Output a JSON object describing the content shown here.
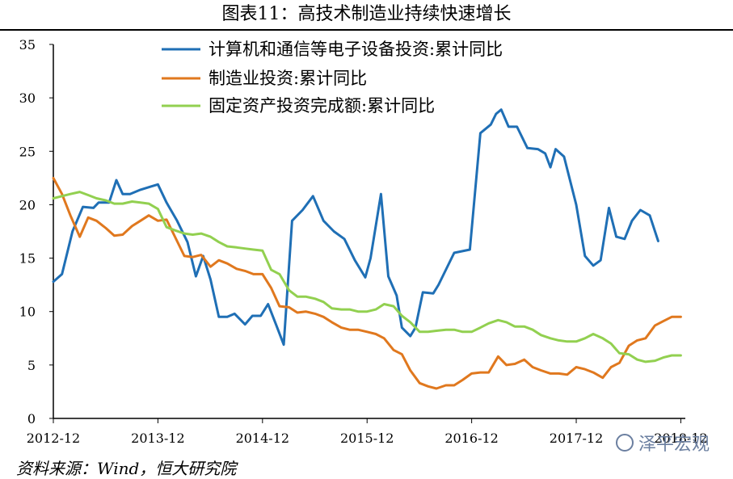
{
  "title": "图表11：高技术制造业持续快速增长",
  "source": "资料来源：Wind，恒大研究院",
  "watermark": "泽平宏观",
  "chart_data": {
    "type": "line",
    "title": "图表11：高技术制造业持续快速增长",
    "ylim": [
      0,
      35
    ],
    "yticks": [
      0,
      5,
      10,
      15,
      20,
      25,
      30,
      35
    ],
    "xlim": [
      2012.917,
      2018.96
    ],
    "xticks": [
      {
        "label": "2012-12",
        "x": 2012.917
      },
      {
        "label": "2013-12",
        "x": 2013.917
      },
      {
        "label": "2014-12",
        "x": 2014.917
      },
      {
        "label": "2015-12",
        "x": 2015.917
      },
      {
        "label": "2016-12",
        "x": 2016.917
      },
      {
        "label": "2017-12",
        "x": 2017.917
      },
      {
        "label": "2018-12",
        "x": 2018.917
      }
    ],
    "legend_position": "top-center",
    "grid": false,
    "series": [
      {
        "name": "计算机和通信等电子设备投资:累计同比",
        "color": "#1f6fb5",
        "points": [
          [
            2012.917,
            12.8
          ],
          [
            2013.0,
            13.5
          ],
          [
            2013.1,
            17.5
          ],
          [
            2013.2,
            19.8
          ],
          [
            2013.3,
            19.7
          ],
          [
            2013.35,
            20.2
          ],
          [
            2013.45,
            20.2
          ],
          [
            2013.52,
            22.3
          ],
          [
            2013.58,
            21.0
          ],
          [
            2013.65,
            21.0
          ],
          [
            2013.75,
            21.4
          ],
          [
            2013.85,
            21.7
          ],
          [
            2013.917,
            21.9
          ],
          [
            2014.0,
            20.2
          ],
          [
            2014.1,
            18.5
          ],
          [
            2014.2,
            16.5
          ],
          [
            2014.28,
            13.3
          ],
          [
            2014.35,
            15.2
          ],
          [
            2014.42,
            13.0
          ],
          [
            2014.5,
            9.5
          ],
          [
            2014.58,
            9.5
          ],
          [
            2014.65,
            9.8
          ],
          [
            2014.75,
            8.8
          ],
          [
            2014.82,
            9.6
          ],
          [
            2014.9,
            9.6
          ],
          [
            2014.97,
            10.7
          ],
          [
            2015.05,
            8.7
          ],
          [
            2015.12,
            6.9
          ],
          [
            2015.2,
            18.5
          ],
          [
            2015.3,
            19.5
          ],
          [
            2015.4,
            20.8
          ],
          [
            2015.5,
            18.5
          ],
          [
            2015.6,
            17.5
          ],
          [
            2015.7,
            16.8
          ],
          [
            2015.8,
            14.8
          ],
          [
            2015.9,
            13.2
          ],
          [
            2015.95,
            15.0
          ],
          [
            2016.05,
            21.0
          ],
          [
            2016.12,
            13.3
          ],
          [
            2016.2,
            11.5
          ],
          [
            2016.25,
            8.5
          ],
          [
            2016.33,
            7.7
          ],
          [
            2016.38,
            8.5
          ],
          [
            2016.45,
            11.8
          ],
          [
            2016.55,
            11.7
          ],
          [
            2016.6,
            12.5
          ],
          [
            2016.75,
            15.5
          ],
          [
            2016.9,
            15.8
          ],
          [
            2017.0,
            26.7
          ],
          [
            2017.1,
            27.5
          ],
          [
            2017.15,
            28.5
          ],
          [
            2017.2,
            28.9
          ],
          [
            2017.27,
            27.3
          ],
          [
            2017.35,
            27.3
          ],
          [
            2017.45,
            25.3
          ],
          [
            2017.55,
            25.2
          ],
          [
            2017.62,
            24.8
          ],
          [
            2017.67,
            23.5
          ],
          [
            2017.72,
            25.2
          ],
          [
            2017.8,
            24.5
          ],
          [
            2017.917,
            20.0
          ],
          [
            2018.0,
            15.2
          ],
          [
            2018.08,
            14.3
          ],
          [
            2018.15,
            14.8
          ],
          [
            2018.23,
            19.7
          ],
          [
            2018.3,
            17.0
          ],
          [
            2018.38,
            16.8
          ],
          [
            2018.45,
            18.5
          ],
          [
            2018.53,
            19.5
          ],
          [
            2018.62,
            19.0
          ],
          [
            2018.7,
            16.6
          ]
        ]
      },
      {
        "name": "制造业投资:累计同比",
        "color": "#e0781e",
        "points": [
          [
            2012.917,
            22.5
          ],
          [
            2013.0,
            21.0
          ],
          [
            2013.08,
            19.0
          ],
          [
            2013.17,
            17.0
          ],
          [
            2013.25,
            18.8
          ],
          [
            2013.33,
            18.5
          ],
          [
            2013.42,
            17.8
          ],
          [
            2013.5,
            17.1
          ],
          [
            2013.58,
            17.2
          ],
          [
            2013.67,
            18.0
          ],
          [
            2013.75,
            18.5
          ],
          [
            2013.83,
            19.0
          ],
          [
            2013.917,
            18.5
          ],
          [
            2014.0,
            18.6
          ],
          [
            2014.08,
            17.0
          ],
          [
            2014.17,
            15.2
          ],
          [
            2014.25,
            15.1
          ],
          [
            2014.33,
            15.3
          ],
          [
            2014.42,
            14.2
          ],
          [
            2014.5,
            14.8
          ],
          [
            2014.58,
            14.5
          ],
          [
            2014.67,
            14.0
          ],
          [
            2014.75,
            13.8
          ],
          [
            2014.83,
            13.5
          ],
          [
            2014.917,
            13.5
          ],
          [
            2015.0,
            12.2
          ],
          [
            2015.08,
            10.5
          ],
          [
            2015.17,
            10.4
          ],
          [
            2015.25,
            9.9
          ],
          [
            2015.33,
            10.0
          ],
          [
            2015.42,
            9.8
          ],
          [
            2015.5,
            9.5
          ],
          [
            2015.58,
            9.0
          ],
          [
            2015.67,
            8.5
          ],
          [
            2015.75,
            8.3
          ],
          [
            2015.83,
            8.3
          ],
          [
            2015.917,
            8.1
          ],
          [
            2016.0,
            7.9
          ],
          [
            2016.08,
            7.5
          ],
          [
            2016.17,
            6.4
          ],
          [
            2016.25,
            6.0
          ],
          [
            2016.33,
            4.5
          ],
          [
            2016.42,
            3.3
          ],
          [
            2016.5,
            3.0
          ],
          [
            2016.58,
            2.8
          ],
          [
            2016.67,
            3.1
          ],
          [
            2016.75,
            3.1
          ],
          [
            2016.83,
            3.6
          ],
          [
            2016.917,
            4.2
          ],
          [
            2017.0,
            4.3
          ],
          [
            2017.08,
            4.3
          ],
          [
            2017.17,
            5.8
          ],
          [
            2017.25,
            5.0
          ],
          [
            2017.33,
            5.1
          ],
          [
            2017.42,
            5.5
          ],
          [
            2017.5,
            4.8
          ],
          [
            2017.58,
            4.5
          ],
          [
            2017.67,
            4.2
          ],
          [
            2017.75,
            4.2
          ],
          [
            2017.83,
            4.1
          ],
          [
            2017.917,
            4.8
          ],
          [
            2018.0,
            4.6
          ],
          [
            2018.08,
            4.3
          ],
          [
            2018.17,
            3.8
          ],
          [
            2018.25,
            4.8
          ],
          [
            2018.33,
            5.2
          ],
          [
            2018.42,
            6.8
          ],
          [
            2018.5,
            7.3
          ],
          [
            2018.58,
            7.5
          ],
          [
            2018.67,
            8.7
          ],
          [
            2018.75,
            9.1
          ],
          [
            2018.83,
            9.5
          ],
          [
            2018.917,
            9.5
          ]
        ]
      },
      {
        "name": "固定资产投资完成额:累计同比",
        "color": "#92d050",
        "points": [
          [
            2012.917,
            20.6
          ],
          [
            2013.0,
            20.8
          ],
          [
            2013.08,
            21.0
          ],
          [
            2013.17,
            21.2
          ],
          [
            2013.25,
            20.9
          ],
          [
            2013.33,
            20.6
          ],
          [
            2013.42,
            20.4
          ],
          [
            2013.5,
            20.1
          ],
          [
            2013.58,
            20.1
          ],
          [
            2013.67,
            20.3
          ],
          [
            2013.75,
            20.2
          ],
          [
            2013.83,
            20.1
          ],
          [
            2013.917,
            19.6
          ],
          [
            2014.0,
            17.9
          ],
          [
            2014.08,
            17.6
          ],
          [
            2014.17,
            17.3
          ],
          [
            2014.25,
            17.2
          ],
          [
            2014.33,
            17.3
          ],
          [
            2014.42,
            17.0
          ],
          [
            2014.5,
            16.5
          ],
          [
            2014.58,
            16.1
          ],
          [
            2014.67,
            16.0
          ],
          [
            2014.75,
            15.9
          ],
          [
            2014.83,
            15.8
          ],
          [
            2014.917,
            15.7
          ],
          [
            2015.0,
            13.9
          ],
          [
            2015.08,
            13.5
          ],
          [
            2015.17,
            12.0
          ],
          [
            2015.25,
            11.4
          ],
          [
            2015.33,
            11.4
          ],
          [
            2015.42,
            11.2
          ],
          [
            2015.5,
            10.9
          ],
          [
            2015.58,
            10.3
          ],
          [
            2015.67,
            10.2
          ],
          [
            2015.75,
            10.2
          ],
          [
            2015.83,
            10.0
          ],
          [
            2015.917,
            10.0
          ],
          [
            2016.0,
            10.2
          ],
          [
            2016.08,
            10.7
          ],
          [
            2016.17,
            10.5
          ],
          [
            2016.25,
            9.6
          ],
          [
            2016.33,
            9.0
          ],
          [
            2016.42,
            8.1
          ],
          [
            2016.5,
            8.1
          ],
          [
            2016.58,
            8.2
          ],
          [
            2016.67,
            8.3
          ],
          [
            2016.75,
            8.3
          ],
          [
            2016.83,
            8.1
          ],
          [
            2016.917,
            8.1
          ],
          [
            2017.0,
            8.5
          ],
          [
            2017.08,
            8.9
          ],
          [
            2017.17,
            9.2
          ],
          [
            2017.25,
            9.0
          ],
          [
            2017.33,
            8.6
          ],
          [
            2017.42,
            8.6
          ],
          [
            2017.5,
            8.3
          ],
          [
            2017.58,
            7.8
          ],
          [
            2017.67,
            7.5
          ],
          [
            2017.75,
            7.3
          ],
          [
            2017.83,
            7.2
          ],
          [
            2017.917,
            7.2
          ],
          [
            2018.0,
            7.5
          ],
          [
            2018.08,
            7.9
          ],
          [
            2018.17,
            7.5
          ],
          [
            2018.25,
            7.0
          ],
          [
            2018.33,
            6.1
          ],
          [
            2018.42,
            6.0
          ],
          [
            2018.5,
            5.5
          ],
          [
            2018.58,
            5.3
          ],
          [
            2018.67,
            5.4
          ],
          [
            2018.75,
            5.7
          ],
          [
            2018.83,
            5.9
          ],
          [
            2018.917,
            5.9
          ]
        ]
      }
    ]
  }
}
